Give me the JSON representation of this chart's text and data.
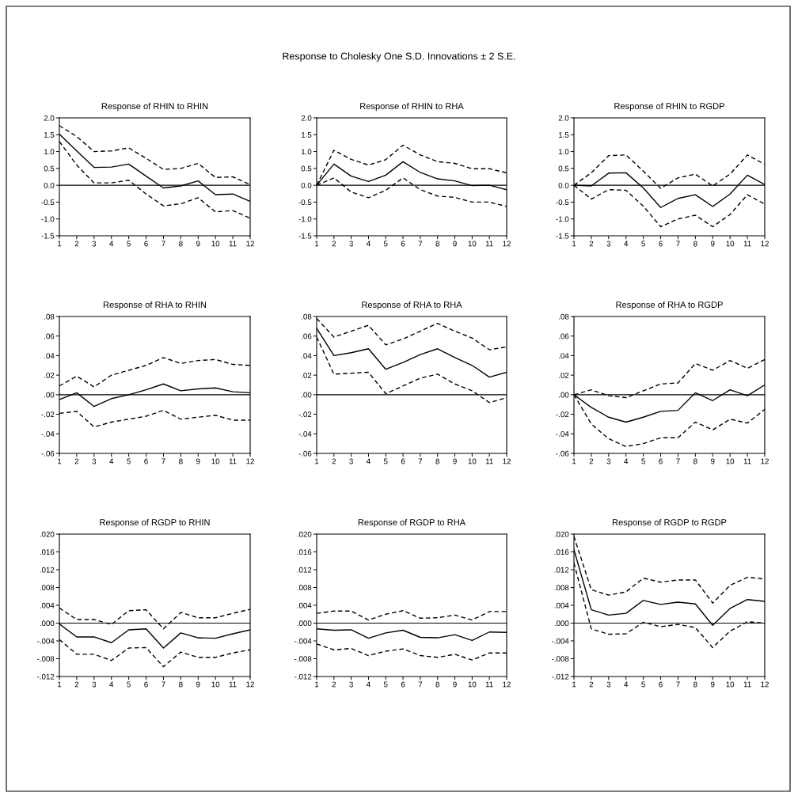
{
  "chart_data": [
    {
      "type": "line",
      "title": "Response of RHIN to RHIN",
      "annotations": [
        "Response to Cholesky One S.D. Innovations ± 2 S.E."
      ],
      "categories": [
        "1",
        "2",
        "3",
        "4",
        "5",
        "6",
        "7",
        "8",
        "9",
        "10",
        "11",
        "12"
      ],
      "series": [
        {
          "color": "#000000",
          "line_style": "solid",
          "values": [
            1.52,
            1.02,
            0.53,
            0.54,
            0.63,
            0.27,
            -0.08,
            -0.02,
            0.13,
            -0.28,
            -0.26,
            -0.48
          ]
        },
        {
          "color": "#000000",
          "line_style": "dashed",
          "values": [
            1.77,
            1.45,
            1.0,
            1.02,
            1.11,
            0.8,
            0.47,
            0.5,
            0.65,
            0.23,
            0.25,
            0.02
          ]
        },
        {
          "color": "#000000",
          "line_style": "dashed",
          "values": [
            1.3,
            0.6,
            0.07,
            0.07,
            0.15,
            -0.26,
            -0.61,
            -0.55,
            -0.37,
            -0.79,
            -0.75,
            -0.98
          ]
        }
      ],
      "ylim": [
        -1.5,
        2.0
      ],
      "yticks": [
        {
          "value": -1.5,
          "label": "-1.5"
        },
        {
          "value": -1.0,
          "label": "-1.0"
        },
        {
          "value": -0.5,
          "label": "-0.5"
        },
        {
          "value": 0.0,
          "label": "0.0"
        },
        {
          "value": 0.5,
          "label": "0.5"
        },
        {
          "value": 1.0,
          "label": "1.0"
        },
        {
          "value": 1.5,
          "label": "1.5"
        },
        {
          "value": 2.0,
          "label": "2.0"
        }
      ],
      "ref_lines": [
        {
          "axis": "y",
          "value": 0,
          "color": "#000000"
        }
      ],
      "grid": false,
      "legend": false
    },
    {
      "type": "line",
      "title": "Response of RHIN to RHA",
      "categories": [
        "1",
        "2",
        "3",
        "4",
        "5",
        "6",
        "7",
        "8",
        "9",
        "10",
        "11",
        "12"
      ],
      "series": [
        {
          "color": "#000000",
          "line_style": "solid",
          "values": [
            0,
            0.63,
            0.27,
            0.11,
            0.3,
            0.7,
            0.38,
            0.19,
            0.13,
            -0.01,
            0,
            -0.13
          ]
        },
        {
          "color": "#000000",
          "line_style": "dashed",
          "values": [
            0,
            1.04,
            0.77,
            0.6,
            0.76,
            1.19,
            0.9,
            0.7,
            0.65,
            0.49,
            0.49,
            0.37
          ]
        },
        {
          "color": "#000000",
          "line_style": "dashed",
          "values": [
            0,
            0.22,
            -0.2,
            -0.37,
            -0.15,
            0.22,
            -0.13,
            -0.32,
            -0.36,
            -0.5,
            -0.5,
            -0.63
          ]
        }
      ],
      "ylim": [
        -1.5,
        2.0
      ],
      "yticks": [
        {
          "value": -1.5,
          "label": "-1.5"
        },
        {
          "value": -1.0,
          "label": "-1.0"
        },
        {
          "value": -0.5,
          "label": "-0.5"
        },
        {
          "value": 0.0,
          "label": "0.0"
        },
        {
          "value": 0.5,
          "label": "0.5"
        },
        {
          "value": 1.0,
          "label": "1.0"
        },
        {
          "value": 1.5,
          "label": "1.5"
        },
        {
          "value": 2.0,
          "label": "2.0"
        }
      ],
      "ref_lines": [
        {
          "axis": "y",
          "value": 0,
          "color": "#000000"
        }
      ],
      "grid": false,
      "legend": false
    },
    {
      "type": "line",
      "title": "Response of RHIN to RGDP",
      "categories": [
        "1",
        "2",
        "3",
        "4",
        "5",
        "6",
        "7",
        "8",
        "9",
        "10",
        "11",
        "12"
      ],
      "series": [
        {
          "color": "#000000",
          "line_style": "solid",
          "values": [
            0,
            -0.02,
            0.36,
            0.37,
            -0.08,
            -0.66,
            -0.39,
            -0.28,
            -0.63,
            -0.26,
            0.3,
            0.02
          ]
        },
        {
          "color": "#000000",
          "line_style": "dashed",
          "values": [
            0,
            0.37,
            0.88,
            0.9,
            0.42,
            -0.09,
            0.22,
            0.33,
            -0.02,
            0.33,
            0.9,
            0.62
          ]
        },
        {
          "color": "#000000",
          "line_style": "dashed",
          "values": [
            0,
            -0.41,
            -0.13,
            -0.15,
            -0.62,
            -1.23,
            -1.0,
            -0.89,
            -1.23,
            -0.87,
            -0.28,
            -0.56
          ]
        }
      ],
      "ylim": [
        -1.5,
        2.0
      ],
      "yticks": [
        {
          "value": -1.5,
          "label": "-1.5"
        },
        {
          "value": -1.0,
          "label": "-1.0"
        },
        {
          "value": -0.5,
          "label": "-0.5"
        },
        {
          "value": 0.0,
          "label": "0.0"
        },
        {
          "value": 0.5,
          "label": "0.5"
        },
        {
          "value": 1.0,
          "label": "1.0"
        },
        {
          "value": 1.5,
          "label": "1.5"
        },
        {
          "value": 2.0,
          "label": "2.0"
        }
      ],
      "ref_lines": [
        {
          "axis": "y",
          "value": 0,
          "color": "#000000"
        }
      ],
      "grid": false,
      "legend": false
    },
    {
      "type": "line",
      "title": "Response of RHA to RHIN",
      "categories": [
        "1",
        "2",
        "3",
        "4",
        "5",
        "6",
        "7",
        "8",
        "9",
        "10",
        "11",
        "12"
      ],
      "series": [
        {
          "color": "#000000",
          "line_style": "solid",
          "values": [
            -0.005,
            0.002,
            -0.012,
            -0.004,
            0.0,
            0.005,
            0.011,
            0.004,
            0.006,
            0.007,
            0.003,
            0.002
          ]
        },
        {
          "color": "#000000",
          "line_style": "dashed",
          "values": [
            0.009,
            0.019,
            0.008,
            0.02,
            0.025,
            0.03,
            0.038,
            0.032,
            0.035,
            0.036,
            0.031,
            0.03
          ]
        },
        {
          "color": "#000000",
          "line_style": "dashed",
          "values": [
            -0.019,
            -0.017,
            -0.033,
            -0.028,
            -0.025,
            -0.022,
            -0.016,
            -0.025,
            -0.023,
            -0.021,
            -0.026,
            -0.026
          ]
        }
      ],
      "ylim": [
        -0.06,
        0.08
      ],
      "yticks": [
        {
          "value": -0.06,
          "label": "-.06"
        },
        {
          "value": -0.04,
          "label": "-.04"
        },
        {
          "value": -0.02,
          "label": "-.02"
        },
        {
          "value": 0.0,
          "label": ".00"
        },
        {
          "value": 0.02,
          "label": ".02"
        },
        {
          "value": 0.04,
          "label": ".04"
        },
        {
          "value": 0.06,
          "label": ".06"
        },
        {
          "value": 0.08,
          "label": ".08"
        }
      ],
      "ref_lines": [
        {
          "axis": "y",
          "value": 0,
          "color": "#000000"
        }
      ],
      "grid": false,
      "legend": false
    },
    {
      "type": "line",
      "title": "Response of RHA to RHA",
      "categories": [
        "1",
        "2",
        "3",
        "4",
        "5",
        "6",
        "7",
        "8",
        "9",
        "10",
        "11",
        "12"
      ],
      "series": [
        {
          "color": "#000000",
          "line_style": "solid",
          "values": [
            0.068,
            0.04,
            0.043,
            0.047,
            0.026,
            0.033,
            0.041,
            0.047,
            0.038,
            0.03,
            0.018,
            0.023
          ]
        },
        {
          "color": "#000000",
          "line_style": "dashed",
          "values": [
            0.078,
            0.059,
            0.065,
            0.071,
            0.051,
            0.057,
            0.065,
            0.073,
            0.065,
            0.058,
            0.046,
            0.049
          ]
        },
        {
          "color": "#000000",
          "line_style": "dashed",
          "values": [
            0.059,
            0.021,
            0.022,
            0.023,
            0.001,
            0.009,
            0.017,
            0.021,
            0.011,
            0.004,
            -0.008,
            -0.003
          ]
        }
      ],
      "ylim": [
        -0.06,
        0.08
      ],
      "yticks": [
        {
          "value": -0.06,
          "label": "-.06"
        },
        {
          "value": -0.04,
          "label": "-.04"
        },
        {
          "value": -0.02,
          "label": "-.02"
        },
        {
          "value": 0.0,
          "label": ".00"
        },
        {
          "value": 0.02,
          "label": ".02"
        },
        {
          "value": 0.04,
          "label": ".04"
        },
        {
          "value": 0.06,
          "label": ".06"
        },
        {
          "value": 0.08,
          "label": ".08"
        }
      ],
      "ref_lines": [
        {
          "axis": "y",
          "value": 0,
          "color": "#000000"
        }
      ],
      "grid": false,
      "legend": false
    },
    {
      "type": "line",
      "title": "Response of RHA to RGDP",
      "categories": [
        "1",
        "2",
        "3",
        "4",
        "5",
        "6",
        "7",
        "8",
        "9",
        "10",
        "11",
        "12"
      ],
      "series": [
        {
          "color": "#000000",
          "line_style": "solid",
          "values": [
            0,
            -0.013,
            -0.023,
            -0.028,
            -0.023,
            -0.017,
            -0.016,
            0.002,
            -0.006,
            0.005,
            -0.001,
            0.01
          ]
        },
        {
          "color": "#000000",
          "line_style": "dashed",
          "values": [
            0,
            0.005,
            -0.001,
            -0.003,
            0.004,
            0.011,
            0.012,
            0.032,
            0.025,
            0.035,
            0.027,
            0.036
          ]
        },
        {
          "color": "#000000",
          "line_style": "dashed",
          "values": [
            0,
            -0.03,
            -0.045,
            -0.053,
            -0.05,
            -0.044,
            -0.044,
            -0.028,
            -0.036,
            -0.025,
            -0.029,
            -0.015
          ]
        }
      ],
      "ylim": [
        -0.06,
        0.08
      ],
      "yticks": [
        {
          "value": -0.06,
          "label": "-.06"
        },
        {
          "value": -0.04,
          "label": "-.04"
        },
        {
          "value": -0.02,
          "label": "-.02"
        },
        {
          "value": 0.0,
          "label": ".00"
        },
        {
          "value": 0.02,
          "label": ".02"
        },
        {
          "value": 0.04,
          "label": ".04"
        },
        {
          "value": 0.06,
          "label": ".06"
        },
        {
          "value": 0.08,
          "label": ".08"
        }
      ],
      "ref_lines": [
        {
          "axis": "y",
          "value": 0,
          "color": "#000000"
        }
      ],
      "grid": false,
      "legend": false
    },
    {
      "type": "line",
      "title": "Response of RGDP to RHIN",
      "categories": [
        "1",
        "2",
        "3",
        "4",
        "5",
        "6",
        "7",
        "8",
        "9",
        "10",
        "11",
        "12"
      ],
      "series": [
        {
          "color": "#000000",
          "line_style": "solid",
          "values": [
            -0.0002,
            -0.0031,
            -0.0031,
            -0.0044,
            -0.0015,
            -0.0013,
            -0.0056,
            -0.0022,
            -0.0033,
            -0.0034,
            -0.0024,
            -0.0015
          ]
        },
        {
          "color": "#000000",
          "line_style": "dashed",
          "values": [
            0.0034,
            0.0008,
            0.0008,
            -0.0003,
            0.0028,
            0.003,
            -0.0013,
            0.0024,
            0.0012,
            0.0012,
            0.0022,
            0.0031
          ]
        },
        {
          "color": "#000000",
          "line_style": "dashed",
          "values": [
            -0.0037,
            -0.007,
            -0.007,
            -0.0084,
            -0.0056,
            -0.0055,
            -0.0098,
            -0.0065,
            -0.0077,
            -0.0077,
            -0.0067,
            -0.006
          ]
        }
      ],
      "ylim": [
        -0.012,
        0.02
      ],
      "yticks": [
        {
          "value": -0.012,
          "label": "-.012"
        },
        {
          "value": -0.008,
          "label": "-.008"
        },
        {
          "value": -0.004,
          "label": "-.004"
        },
        {
          "value": 0.0,
          "label": ".000"
        },
        {
          "value": 0.004,
          "label": ".004"
        },
        {
          "value": 0.008,
          "label": ".008"
        },
        {
          "value": 0.012,
          "label": ".012"
        },
        {
          "value": 0.016,
          "label": ".016"
        },
        {
          "value": 0.02,
          "label": ".020"
        }
      ],
      "ref_lines": [
        {
          "axis": "y",
          "value": 0,
          "color": "#000000"
        }
      ],
      "grid": false,
      "legend": false
    },
    {
      "type": "line",
      "title": "Response of RGDP to RHA",
      "categories": [
        "1",
        "2",
        "3",
        "4",
        "5",
        "6",
        "7",
        "8",
        "9",
        "10",
        "11",
        "12"
      ],
      "series": [
        {
          "color": "#000000",
          "line_style": "solid",
          "values": [
            -0.0013,
            -0.0016,
            -0.0015,
            -0.0034,
            -0.0022,
            -0.0016,
            -0.0032,
            -0.0033,
            -0.0026,
            -0.0039,
            -0.002,
            -0.0021
          ]
        },
        {
          "color": "#000000",
          "line_style": "dashed",
          "values": [
            0.0022,
            0.0027,
            0.0027,
            0.0007,
            0.002,
            0.0028,
            0.0011,
            0.0012,
            0.0018,
            0.0007,
            0.0026,
            0.0026
          ]
        },
        {
          "color": "#000000",
          "line_style": "dashed",
          "values": [
            -0.0047,
            -0.006,
            -0.0057,
            -0.0073,
            -0.0063,
            -0.0058,
            -0.0073,
            -0.0077,
            -0.007,
            -0.0083,
            -0.0067,
            -0.0067
          ]
        }
      ],
      "ylim": [
        -0.012,
        0.02
      ],
      "yticks": [
        {
          "value": -0.012,
          "label": "-.012"
        },
        {
          "value": -0.008,
          "label": "-.008"
        },
        {
          "value": -0.004,
          "label": "-.004"
        },
        {
          "value": 0.0,
          "label": ".000"
        },
        {
          "value": 0.004,
          "label": ".004"
        },
        {
          "value": 0.008,
          "label": ".008"
        },
        {
          "value": 0.012,
          "label": ".012"
        },
        {
          "value": 0.016,
          "label": ".016"
        },
        {
          "value": 0.02,
          "label": ".020"
        }
      ],
      "ref_lines": [
        {
          "axis": "y",
          "value": 0,
          "color": "#000000"
        }
      ],
      "grid": false,
      "legend": false
    },
    {
      "type": "line",
      "title": "Response of RGDP to RGDP",
      "categories": [
        "1",
        "2",
        "3",
        "4",
        "5",
        "6",
        "7",
        "8",
        "9",
        "10",
        "11",
        "12"
      ],
      "series": [
        {
          "color": "#000000",
          "line_style": "solid",
          "values": [
            0.0165,
            0.003,
            0.0018,
            0.0022,
            0.0051,
            0.0042,
            0.0047,
            0.0043,
            -0.0005,
            0.0033,
            0.0053,
            0.0049
          ]
        },
        {
          "color": "#000000",
          "line_style": "dashed",
          "values": [
            0.0195,
            0.0075,
            0.0063,
            0.007,
            0.0101,
            0.0092,
            0.0097,
            0.0097,
            0.0045,
            0.0085,
            0.0103,
            0.0099
          ]
        },
        {
          "color": "#000000",
          "line_style": "dashed",
          "values": [
            0.0135,
            -0.0013,
            -0.0025,
            -0.0024,
            0.0002,
            -0.0008,
            -0.0003,
            -0.001,
            -0.0055,
            -0.0018,
            0.0003,
            0.0
          ]
        }
      ],
      "ylim": [
        -0.012,
        0.02
      ],
      "yticks": [
        {
          "value": -0.012,
          "label": "-.012"
        },
        {
          "value": -0.008,
          "label": "-.008"
        },
        {
          "value": -0.004,
          "label": "-.004"
        },
        {
          "value": 0.0,
          "label": ".000"
        },
        {
          "value": 0.004,
          "label": ".004"
        },
        {
          "value": 0.008,
          "label": ".008"
        },
        {
          "value": 0.012,
          "label": ".012"
        },
        {
          "value": 0.016,
          "label": ".016"
        },
        {
          "value": 0.02,
          "label": ".020"
        }
      ],
      "ref_lines": [
        {
          "axis": "y",
          "value": 0,
          "color": "#000000"
        }
      ],
      "grid": false,
      "legend": false
    }
  ]
}
